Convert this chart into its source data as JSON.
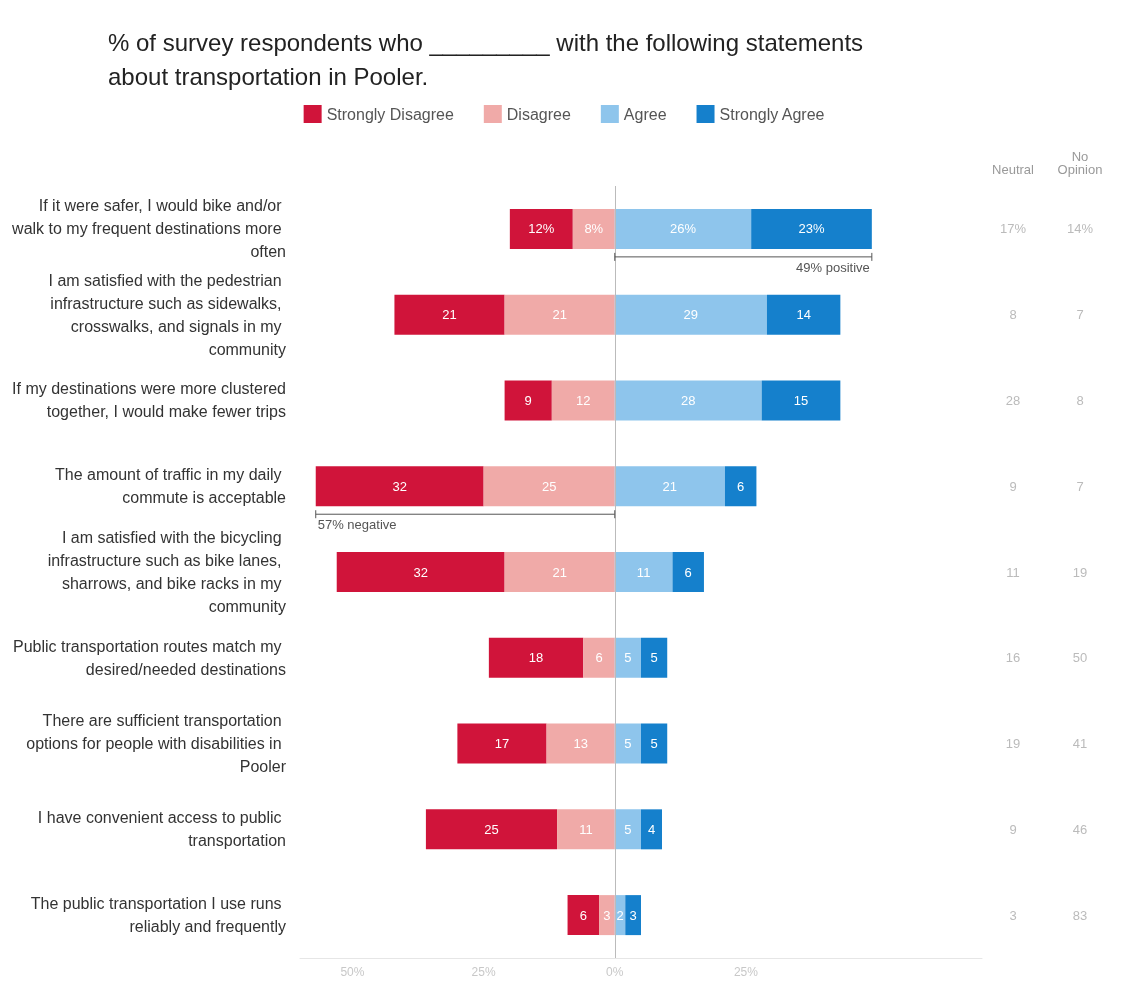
{
  "chart_data": {
    "type": "bar",
    "orientation": "horizontal",
    "title": "% of survey respondents who _________ with the following statements about transportation in Pooler.",
    "categories": [
      "If it were safer, I would bike and/or walk to my frequent destinations more often",
      "I am satisfied with the pedestrian infrastructure such as sidewalks, crosswalks, and signals in my community",
      "If my destinations were more clustered together, I would make fewer trips",
      "The amount of traffic in my daily commute is acceptable",
      "I am satisfied with the bicycling infrastructure such as bike lanes, sharrows, and bike racks in my community",
      "Public transportation routes match my desired/needed destinations",
      "There are sufficient transportation options for people with disabilities in Pooler",
      "I have convenient access to public transportation",
      "The public transportation I use runs reliably and frequently"
    ],
    "series": [
      {
        "name": "Strongly Disagree",
        "color": "#d0143a",
        "values": [
          12,
          21,
          9,
          32,
          32,
          18,
          17,
          25,
          6
        ],
        "base": [
          -20,
          -42,
          -21,
          -57,
          -53,
          -24,
          -30,
          -36,
          -9
        ],
        "value_labels": [
          "12%",
          "21",
          "9",
          "32",
          "32",
          "18",
          "17",
          "25",
          "6"
        ]
      },
      {
        "name": "Disagree",
        "color": "#f0aaa8",
        "values": [
          8,
          21,
          12,
          25,
          21,
          6,
          13,
          11,
          3
        ],
        "base": [
          -8,
          -21,
          -12,
          -25,
          -21,
          -6,
          -13,
          -11,
          -3
        ],
        "value_labels": [
          "8%",
          "21",
          "12",
          "25",
          "21",
          "6",
          "13",
          "11",
          "3"
        ]
      },
      {
        "name": "Agree",
        "color": "#8ec5ec",
        "values": [
          26,
          29,
          28,
          21,
          11,
          5,
          5,
          5,
          2
        ],
        "base": [
          0,
          0,
          0,
          0,
          0,
          0,
          0,
          0,
          0
        ],
        "value_labels": [
          "26%",
          "29",
          "28",
          "21",
          "11",
          "5",
          "5",
          "5",
          "2"
        ]
      },
      {
        "name": "Strongly Agree",
        "color": "#1580cc",
        "values": [
          23,
          14,
          15,
          6,
          6,
          5,
          5,
          4,
          3
        ],
        "base": [
          26,
          29,
          28,
          21,
          11,
          5,
          5,
          5,
          2
        ],
        "value_labels": [
          "23%",
          "14",
          "15",
          "6",
          "6",
          "5",
          "5",
          "4",
          "3"
        ]
      }
    ],
    "xlim": [
      -60,
      70
    ],
    "xticks": [
      {
        "value": -50,
        "label": "50%"
      },
      {
        "value": -25,
        "label": "25%"
      },
      {
        "value": 0,
        "label": "0%"
      },
      {
        "value": 25,
        "label": "25%"
      }
    ],
    "ref_lines": [
      {
        "axis": "x",
        "value": 0,
        "color": "#bbbbbb"
      }
    ],
    "legend": "top",
    "grid": false,
    "annotations": [
      "Neutral",
      "No Opinion",
      "17%",
      "14%",
      "8",
      "7",
      "28",
      "8",
      "9",
      "7",
      "11",
      "19",
      "16",
      "50",
      "19",
      "41",
      "9",
      "46",
      "3",
      "83",
      {
        "text": "49% positive",
        "x": 49,
        "y": "If it were safer, I would bike and/or walk to my frequent destinations more often"
      },
      {
        "text": "57% negative",
        "x": -57,
        "y": "The amount of traffic in my daily commute is acceptable"
      }
    ]
  }
}
